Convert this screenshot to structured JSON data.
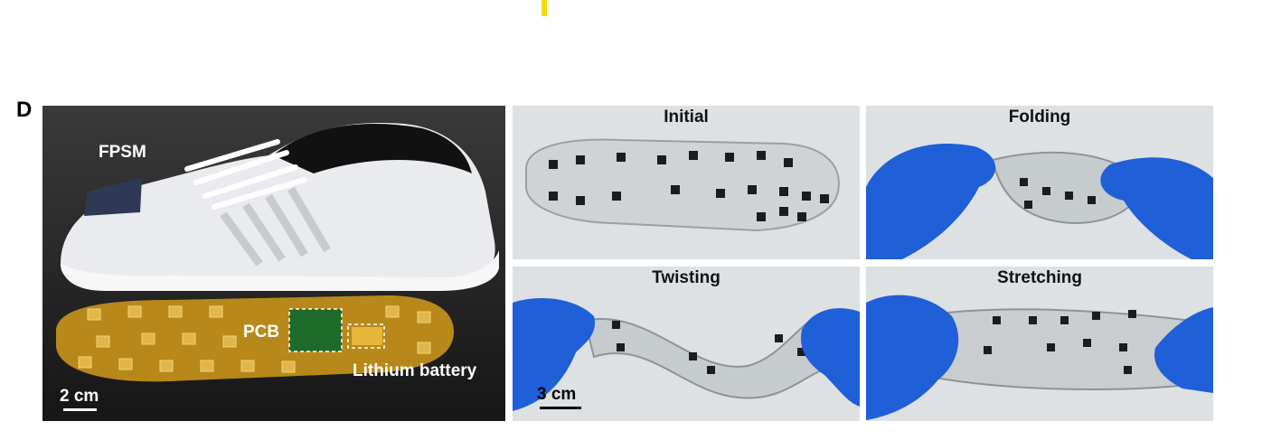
{
  "panel_letter": "D",
  "colors": {
    "marker_yellow": "#f4dd00",
    "glove_blue": "#1f5fd8",
    "insole_amber": "#d3a21d",
    "bg_gray": "#d9dde0"
  },
  "shoe_photo": {
    "fpsm_label": "FPSM",
    "pcb_label": "PCB",
    "battery_label": "Lithium battery",
    "scale_label": "2 cm"
  },
  "insole_panels": {
    "initial_title": "Initial",
    "folding_title": "Folding",
    "twisting_title": "Twisting",
    "stretching_title": "Stretching",
    "scale_label": "3 cm"
  }
}
